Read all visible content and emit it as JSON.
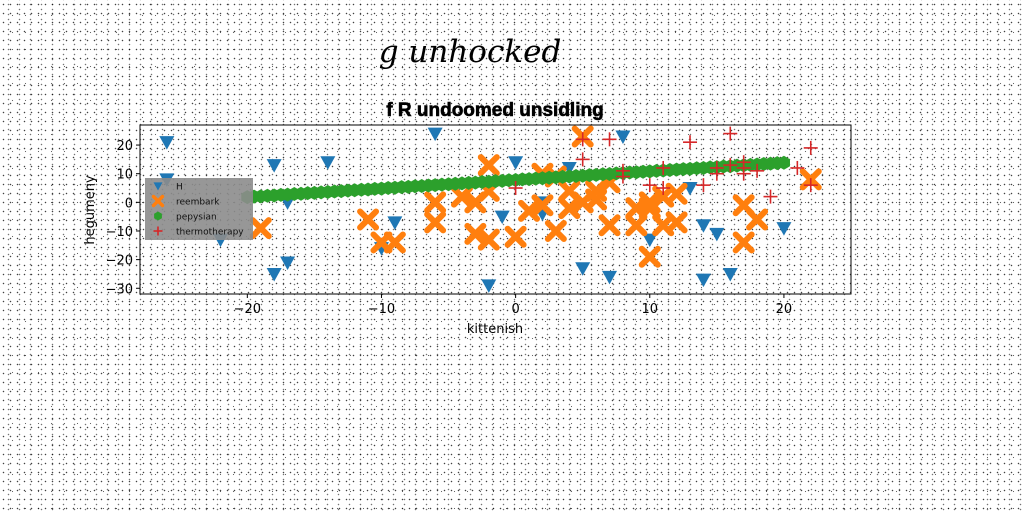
{
  "suptitle": "g unhocked",
  "chart_data": {
    "type": "scatter",
    "title": "f R undoomed unsidling",
    "xlabel": "kittenish",
    "ylabel": "hegumeny",
    "xlim": [
      -28,
      25
    ],
    "ylim": [
      -32,
      27
    ],
    "xticks": [
      -20,
      -10,
      0,
      10,
      20
    ],
    "yticks": [
      -30,
      -20,
      -10,
      0,
      10,
      20
    ],
    "grid": false,
    "legend_position": "center-left",
    "series": [
      {
        "name": "H",
        "marker": "triangle-down",
        "color": "#1f77b4",
        "points": [
          [
            -26,
            21
          ],
          [
            -26,
            8
          ],
          [
            -22,
            -13
          ],
          [
            -18,
            13
          ],
          [
            -18,
            -25
          ],
          [
            -17,
            -21
          ],
          [
            -17,
            0
          ],
          [
            -14,
            14
          ],
          [
            -10,
            -16
          ],
          [
            -9,
            -7
          ],
          [
            -6,
            24
          ],
          [
            -2,
            -29
          ],
          [
            -1,
            -5
          ],
          [
            0,
            14
          ],
          [
            2,
            0
          ],
          [
            2,
            -4
          ],
          [
            4,
            12
          ],
          [
            5,
            -23
          ],
          [
            7,
            -26
          ],
          [
            8,
            23
          ],
          [
            10,
            -13
          ],
          [
            13,
            5
          ],
          [
            14,
            -8
          ],
          [
            14,
            -27
          ],
          [
            15,
            -11
          ],
          [
            16,
            -25
          ],
          [
            20,
            -9
          ]
        ]
      },
      {
        "name": "reembark",
        "marker": "x-filled",
        "color": "#ff7f0e",
        "points": [
          [
            -19,
            -9
          ],
          [
            -11,
            -6
          ],
          [
            -10,
            -14
          ],
          [
            -9,
            -14
          ],
          [
            -6,
            0
          ],
          [
            -6,
            -7
          ],
          [
            -4,
            2
          ],
          [
            -3,
            -11
          ],
          [
            -3,
            0
          ],
          [
            -2,
            -13
          ],
          [
            -2,
            13
          ],
          [
            -2,
            4
          ],
          [
            0,
            -12
          ],
          [
            1,
            -3
          ],
          [
            2,
            -1
          ],
          [
            2,
            10
          ],
          [
            3,
            -10
          ],
          [
            3,
            9
          ],
          [
            4,
            -2
          ],
          [
            4,
            4
          ],
          [
            5,
            23
          ],
          [
            5,
            0
          ],
          [
            6,
            1
          ],
          [
            6,
            4
          ],
          [
            7,
            -8
          ],
          [
            7,
            7
          ],
          [
            9,
            -2
          ],
          [
            9,
            -8
          ],
          [
            10,
            -2
          ],
          [
            10,
            0
          ],
          [
            10,
            -19
          ],
          [
            11,
            -8
          ],
          [
            11,
            2
          ],
          [
            12,
            3
          ],
          [
            12,
            -7
          ],
          [
            17,
            -1
          ],
          [
            17,
            -14
          ],
          [
            18,
            -6
          ],
          [
            22,
            8
          ]
        ]
      },
      {
        "name": "pepysian",
        "marker": "hexagon",
        "color": "#2ca02c",
        "points": [
          [
            -20,
            1.8
          ],
          [
            -19.5,
            2.0
          ],
          [
            -19,
            2.1
          ],
          [
            -18.5,
            2.3
          ],
          [
            -18,
            2.4
          ],
          [
            -17.5,
            2.6
          ],
          [
            -17,
            2.7
          ],
          [
            -16.5,
            2.9
          ],
          [
            -16,
            3.0
          ],
          [
            -15.5,
            3.2
          ],
          [
            -15,
            3.3
          ],
          [
            -14.5,
            3.5
          ],
          [
            -14,
            3.6
          ],
          [
            -13.5,
            3.8
          ],
          [
            -13,
            3.9
          ],
          [
            -12.5,
            4.1
          ],
          [
            -12,
            4.2
          ],
          [
            -11.5,
            4.4
          ],
          [
            -11,
            4.5
          ],
          [
            -10.5,
            4.7
          ],
          [
            -10,
            4.8
          ],
          [
            -9.5,
            5.0
          ],
          [
            -9,
            5.1
          ],
          [
            -8.5,
            5.3
          ],
          [
            -8,
            5.4
          ],
          [
            -7.5,
            5.6
          ],
          [
            -7,
            5.7
          ],
          [
            -6.5,
            5.9
          ],
          [
            -6,
            6.0
          ],
          [
            -5.5,
            6.2
          ],
          [
            -5,
            6.3
          ],
          [
            -4.5,
            6.5
          ],
          [
            -4,
            6.6
          ],
          [
            -3.5,
            6.8
          ],
          [
            -3,
            6.9
          ],
          [
            -2.5,
            7.1
          ],
          [
            -2,
            7.2
          ],
          [
            -1.5,
            7.4
          ],
          [
            -1,
            7.5
          ],
          [
            -0.5,
            7.7
          ],
          [
            0,
            7.8
          ],
          [
            0.5,
            8.0
          ],
          [
            1,
            8.1
          ],
          [
            1.5,
            8.3
          ],
          [
            2,
            8.4
          ],
          [
            2.5,
            8.6
          ],
          [
            3,
            8.7
          ],
          [
            3.5,
            8.9
          ],
          [
            4,
            9.0
          ],
          [
            4.5,
            9.2
          ],
          [
            5,
            9.3
          ],
          [
            5.5,
            9.5
          ],
          [
            6,
            9.6
          ],
          [
            6.5,
            9.8
          ],
          [
            7,
            9.9
          ],
          [
            7.5,
            10.1
          ],
          [
            8,
            10.2
          ],
          [
            8.5,
            10.4
          ],
          [
            9,
            10.5
          ],
          [
            9.5,
            10.7
          ],
          [
            10,
            10.8
          ],
          [
            10.5,
            11.0
          ],
          [
            11,
            11.1
          ],
          [
            11.5,
            11.3
          ],
          [
            12,
            11.4
          ],
          [
            12.5,
            11.6
          ],
          [
            13,
            11.7
          ],
          [
            13.5,
            11.9
          ],
          [
            14,
            12.0
          ],
          [
            14.5,
            12.2
          ],
          [
            15,
            12.3
          ],
          [
            15.5,
            12.5
          ],
          [
            16,
            12.6
          ],
          [
            16.5,
            12.8
          ],
          [
            17,
            12.9
          ],
          [
            17.5,
            13.1
          ],
          [
            18,
            13.2
          ],
          [
            18.5,
            13.4
          ],
          [
            19,
            13.5
          ],
          [
            19.5,
            13.7
          ],
          [
            20,
            13.8
          ]
        ]
      },
      {
        "name": "thermotherapy",
        "marker": "plus",
        "color": "#d62728",
        "points": [
          [
            0,
            5
          ],
          [
            5,
            15
          ],
          [
            5,
            22
          ],
          [
            7,
            22
          ],
          [
            8,
            11
          ],
          [
            8,
            9
          ],
          [
            10,
            6
          ],
          [
            11,
            5
          ],
          [
            11,
            12
          ],
          [
            13,
            21
          ],
          [
            14,
            6
          ],
          [
            15,
            12
          ],
          [
            15,
            10
          ],
          [
            16,
            24
          ],
          [
            16,
            13
          ],
          [
            17,
            10
          ],
          [
            17,
            12
          ],
          [
            17,
            14
          ],
          [
            18,
            11
          ],
          [
            19,
            2
          ],
          [
            21,
            12
          ],
          [
            22,
            19
          ],
          [
            22,
            6
          ]
        ]
      }
    ]
  }
}
